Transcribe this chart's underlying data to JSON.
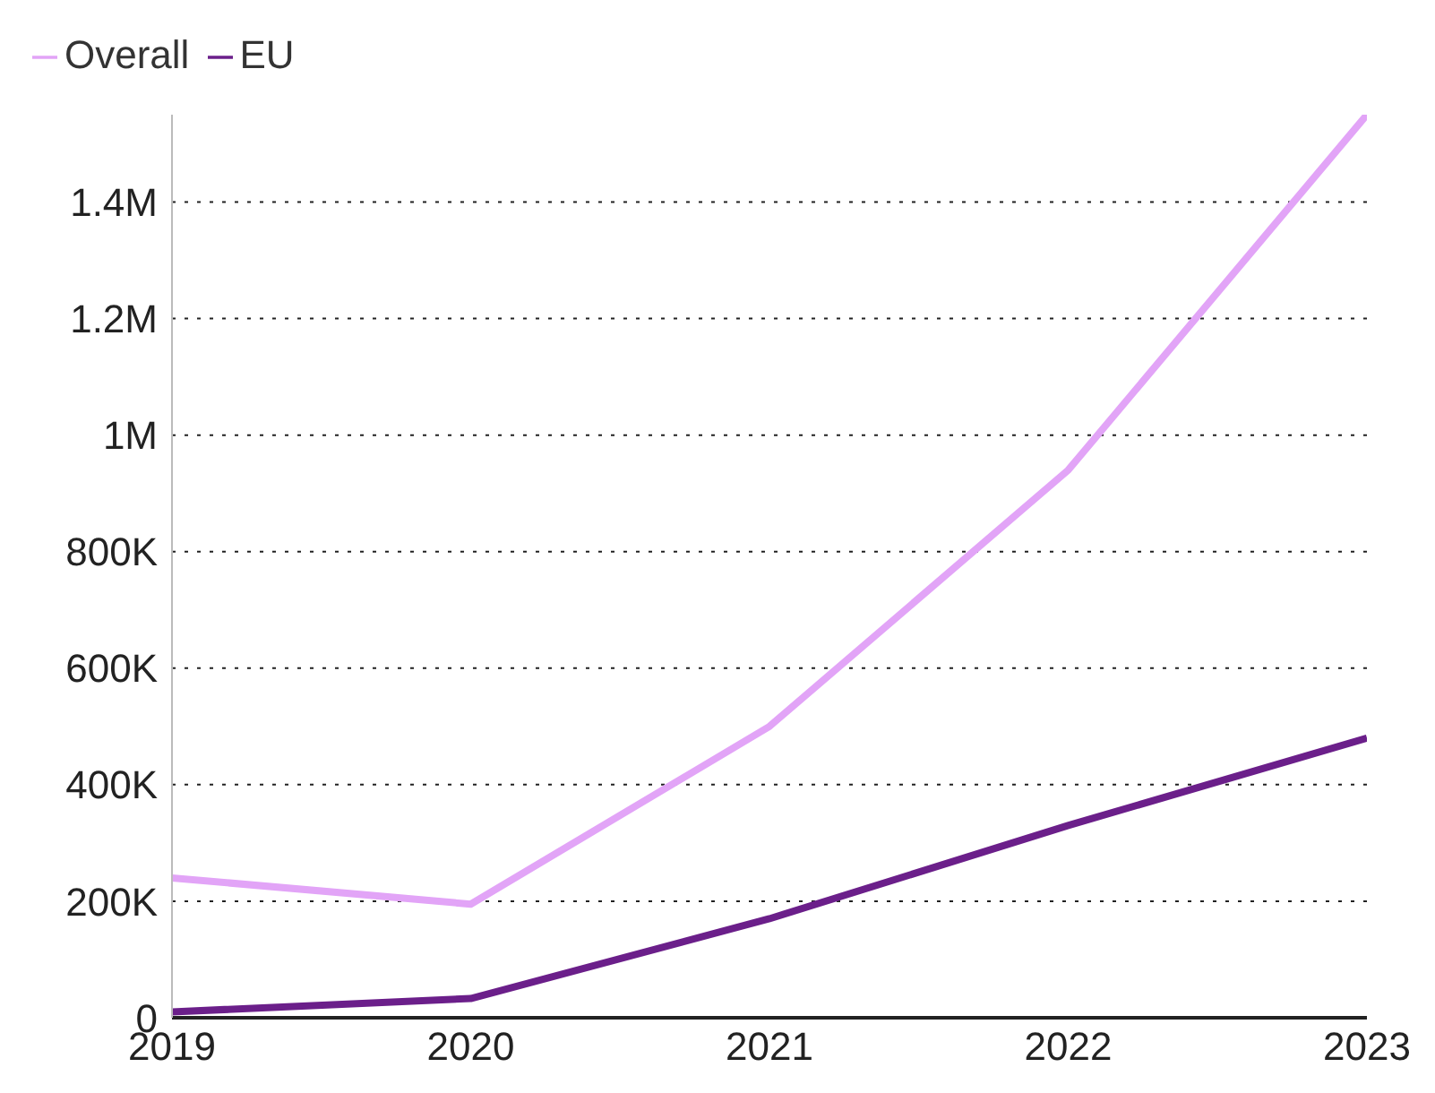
{
  "chart_data": {
    "type": "line",
    "x": [
      2019,
      2020,
      2021,
      2022,
      2023
    ],
    "series": [
      {
        "name": "Overall",
        "color": "#e2a4f7",
        "values": [
          240000,
          195000,
          500000,
          940000,
          1550000
        ]
      },
      {
        "name": "EU",
        "color": "#6b1f8a",
        "values": [
          10000,
          33000,
          170000,
          330000,
          480000
        ]
      }
    ],
    "xlim": [
      2019,
      2023
    ],
    "xticks": [
      2019,
      2020,
      2021,
      2022,
      2023
    ],
    "ylim": [
      0,
      1550000
    ],
    "yticks": [
      {
        "value": 0,
        "label": "0"
      },
      {
        "value": 200000,
        "label": "200K"
      },
      {
        "value": 400000,
        "label": "400K"
      },
      {
        "value": 600000,
        "label": "600K"
      },
      {
        "value": 800000,
        "label": "800K"
      },
      {
        "value": 1000000,
        "label": "1M"
      },
      {
        "value": 1200000,
        "label": "1.2M"
      },
      {
        "value": 1400000,
        "label": "1.4M"
      }
    ],
    "grid": "y",
    "legend": "top left",
    "marker": "none",
    "line_style": "solid"
  }
}
